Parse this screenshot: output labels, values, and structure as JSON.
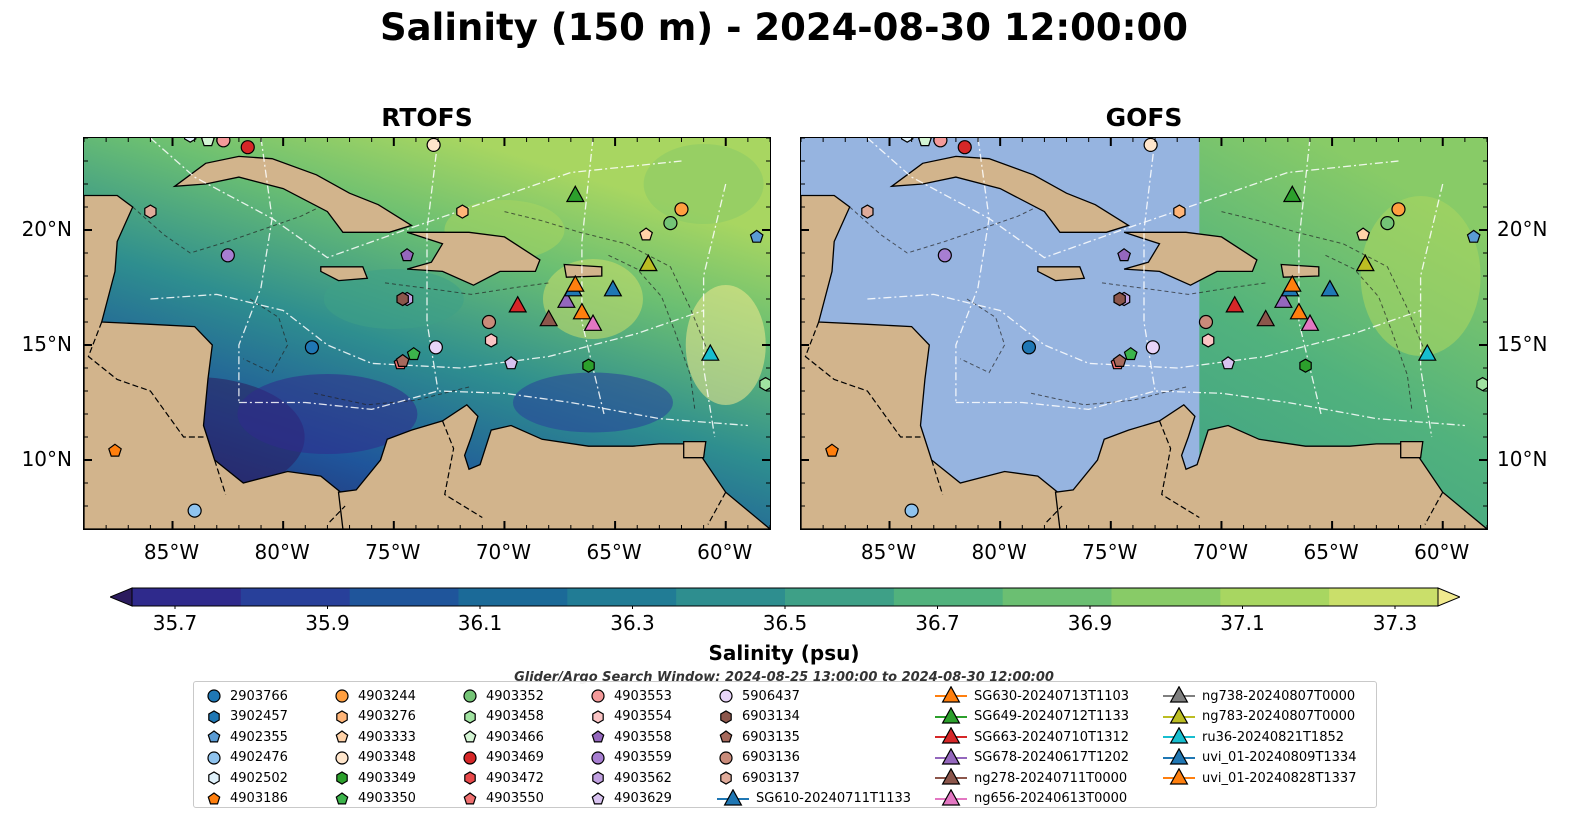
{
  "title": "Salinity (150 m) - 2024-08-30 12:00:00",
  "panels": [
    {
      "title": "RTOFS",
      "model_field": true
    },
    {
      "title": "GOFS",
      "model_field": true
    }
  ],
  "axes": {
    "lon_ticks": [
      "85°W",
      "80°W",
      "75°W",
      "70°W",
      "65°W",
      "60°W"
    ],
    "lat_ticks": [
      "20°N",
      "15°N",
      "10°N"
    ],
    "lon_range": [
      -89,
      -58
    ],
    "lat_range": [
      7,
      24
    ]
  },
  "colorbar": {
    "label": "Salinity (psu)",
    "ticks": [
      "35.7",
      "35.9",
      "36.1",
      "36.3",
      "36.5",
      "36.7",
      "36.9",
      "37.1",
      "37.3"
    ],
    "range": [
      35.7,
      37.3
    ],
    "colors": [
      "#2b1b5e",
      "#2f2a8c",
      "#28409a",
      "#1f559b",
      "#1b6a98",
      "#217c95",
      "#2e8e8f",
      "#3ea087",
      "#51b27d",
      "#6bbf72",
      "#88cb67",
      "#a8d661",
      "#cadf6a",
      "#f1ea8e"
    ]
  },
  "search_window": "Glider/Argo Search Window: 2024-08-25 13:00:00 to 2024-08-30 12:00:00",
  "legend": [
    {
      "label": "2903766",
      "marker": "circle",
      "color": "#1f77b4"
    },
    {
      "label": "3902457",
      "marker": "hexagon",
      "color": "#1f77b4"
    },
    {
      "label": "4902355",
      "marker": "pentagon",
      "color": "#5a9bd4"
    },
    {
      "label": "4902476",
      "marker": "circle",
      "color": "#8fc3ee"
    },
    {
      "label": "4902502",
      "marker": "hexagon",
      "color": "#dff1fb"
    },
    {
      "label": "4903186",
      "marker": "pentagon",
      "color": "#ff7f0e"
    },
    {
      "label": "4903244",
      "marker": "circle",
      "color": "#ff9f40"
    },
    {
      "label": "4903276",
      "marker": "hexagon",
      "color": "#ffb578"
    },
    {
      "label": "4903333",
      "marker": "pentagon",
      "color": "#ffd2a8"
    },
    {
      "label": "4903348",
      "marker": "circle",
      "color": "#ffe6cc"
    },
    {
      "label": "4903349",
      "marker": "hexagon",
      "color": "#2ca02c"
    },
    {
      "label": "4903350",
      "marker": "pentagon",
      "color": "#3cb44b"
    },
    {
      "label": "4903352",
      "marker": "circle",
      "color": "#74c476"
    },
    {
      "label": "4903458",
      "marker": "hexagon",
      "color": "#a1e3a1"
    },
    {
      "label": "4903466",
      "marker": "pentagon",
      "color": "#d4f5d4"
    },
    {
      "label": "4903469",
      "marker": "circle",
      "color": "#d62728"
    },
    {
      "label": "4903472",
      "marker": "hexagon",
      "color": "#e8494a"
    },
    {
      "label": "4903550",
      "marker": "pentagon",
      "color": "#f07070"
    },
    {
      "label": "4903553",
      "marker": "circle",
      "color": "#f49a9a"
    },
    {
      "label": "4903554",
      "marker": "hexagon",
      "color": "#fbc4c4"
    },
    {
      "label": "4903558",
      "marker": "pentagon",
      "color": "#9467bd"
    },
    {
      "label": "4903559",
      "marker": "circle",
      "color": "#a77ed1"
    },
    {
      "label": "4903562",
      "marker": "hexagon",
      "color": "#c0a0e0"
    },
    {
      "label": "4903629",
      "marker": "pentagon",
      "color": "#d8c2f0"
    },
    {
      "label": "5906437",
      "marker": "circle",
      "color": "#e8d4f8"
    },
    {
      "label": "6903134",
      "marker": "hexagon",
      "color": "#8c564b"
    },
    {
      "label": "6903135",
      "marker": "pentagon",
      "color": "#a6695c"
    },
    {
      "label": "6903136",
      "marker": "circle",
      "color": "#c98b7a"
    },
    {
      "label": "6903137",
      "marker": "hexagon",
      "color": "#e0ab9a"
    },
    {
      "label": "SG610-20240711T1133",
      "marker": "triangle",
      "color": "#1f77b4",
      "track": true
    },
    {
      "label": "SG630-20240713T1103",
      "marker": "triangle",
      "color": "#ff7f0e",
      "track": true
    },
    {
      "label": "SG649-20240712T1133",
      "marker": "triangle",
      "color": "#2ca02c",
      "track": true
    },
    {
      "label": "SG663-20240710T1312",
      "marker": "triangle",
      "color": "#d62728",
      "track": true
    },
    {
      "label": "SG678-20240617T1202",
      "marker": "triangle",
      "color": "#9467bd",
      "track": true
    },
    {
      "label": "ng278-20240711T0000",
      "marker": "triangle",
      "color": "#8c564b",
      "track": true
    },
    {
      "label": "ng656-20240613T0000",
      "marker": "triangle",
      "color": "#e377c2",
      "track": true
    },
    {
      "label": "ng738-20240807T0000",
      "marker": "triangle",
      "color": "#7f7f7f",
      "track": true
    },
    {
      "label": "ng783-20240807T0000",
      "marker": "triangle",
      "color": "#bcbd22",
      "track": true
    },
    {
      "label": "ru36-20240821T1852",
      "marker": "triangle",
      "color": "#17becf",
      "track": true
    },
    {
      "label": "uvi_01-20240809T1334",
      "marker": "triangle",
      "color": "#1f77b4",
      "track": true
    },
    {
      "label": "uvi_01-20240828T1337",
      "marker": "triangle",
      "color": "#ff7f0e",
      "track": true
    }
  ],
  "platforms": [
    {
      "id": "2903766",
      "lon": -78.7,
      "lat": 14.9
    },
    {
      "id": "4902476",
      "lon": -84.0,
      "lat": 7.8
    },
    {
      "id": "4903186",
      "lon": -87.6,
      "lat": 10.4
    },
    {
      "id": "4903244",
      "lon": -62.0,
      "lat": 20.9
    },
    {
      "id": "4903276",
      "lon": -71.9,
      "lat": 20.8
    },
    {
      "id": "4903333",
      "lon": -63.6,
      "lat": 19.8
    },
    {
      "id": "4903348",
      "lon": -73.2,
      "lat": 23.7
    },
    {
      "id": "4903349",
      "lon": -66.2,
      "lat": 14.1
    },
    {
      "id": "4903350",
      "lon": -74.1,
      "lat": 14.6
    },
    {
      "id": "4903352",
      "lon": -62.5,
      "lat": 20.3
    },
    {
      "id": "4903458",
      "lon": -58.2,
      "lat": 13.3
    },
    {
      "id": "4903466",
      "lon": -83.4,
      "lat": 23.9
    },
    {
      "id": "4903469",
      "lon": -81.6,
      "lat": 23.6
    },
    {
      "id": "4903550",
      "lon": -74.7,
      "lat": 14.2
    },
    {
      "id": "4903553",
      "lon": -82.7,
      "lat": 23.9
    },
    {
      "id": "4903554",
      "lon": -70.6,
      "lat": 15.2
    },
    {
      "id": "4903558",
      "lon": -74.4,
      "lat": 18.9
    },
    {
      "id": "4903559",
      "lon": -82.5,
      "lat": 18.9
    },
    {
      "id": "4903562",
      "lon": -74.4,
      "lat": 17.0
    },
    {
      "id": "4903629",
      "lon": -69.7,
      "lat": 14.2
    },
    {
      "id": "4902355",
      "lon": -58.6,
      "lat": 19.7
    },
    {
      "id": "4902502",
      "lon": -84.2,
      "lat": 24.1
    },
    {
      "id": "5906437",
      "lon": -73.1,
      "lat": 14.9
    },
    {
      "id": "6903134",
      "lon": -74.6,
      "lat": 17.0
    },
    {
      "id": "6903135",
      "lon": -74.6,
      "lat": 14.3
    },
    {
      "id": "6903136",
      "lon": -70.7,
      "lat": 16.0
    },
    {
      "id": "6903137",
      "lon": -86.0,
      "lat": 20.8
    },
    {
      "id": "SG610-20240711T1133",
      "lon": -65.1,
      "lat": 17.4
    },
    {
      "id": "SG630-20240713T1103",
      "lon": -66.5,
      "lat": 16.4
    },
    {
      "id": "SG649-20240712T1133",
      "lon": -66.8,
      "lat": 21.5
    },
    {
      "id": "SG663-20240710T1312",
      "lon": -69.4,
      "lat": 16.7
    },
    {
      "id": "SG678-20240617T1202",
      "lon": -67.2,
      "lat": 16.9
    },
    {
      "id": "ng278-20240711T0000",
      "lon": -68.0,
      "lat": 16.1
    },
    {
      "id": "ng656-20240613T0000",
      "lon": -66.0,
      "lat": 15.9
    },
    {
      "id": "ng738-20240807T0000",
      "lon": -63.5,
      "lat": 18.5
    },
    {
      "id": "ng783-20240807T0000",
      "lon": -63.5,
      "lat": 18.5
    },
    {
      "id": "ru36-20240821T1852",
      "lon": -60.7,
      "lat": 14.6
    },
    {
      "id": "uvi_01-20240809T1334",
      "lon": -66.9,
      "lat": 17.4
    },
    {
      "id": "uvi_01-20240828T1337",
      "lon": -66.8,
      "lat": 17.6
    }
  ]
}
